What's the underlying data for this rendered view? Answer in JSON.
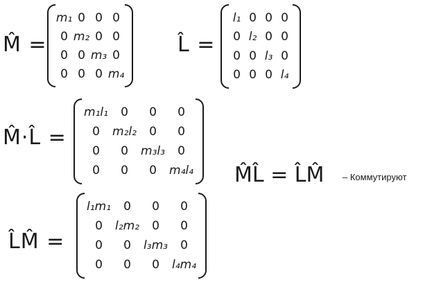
{
  "equations": {
    "M": {
      "lhs": "M̂ =",
      "matrix": [
        [
          "m₁",
          "0",
          "0",
          "0"
        ],
        [
          "0",
          "m₂",
          "0",
          "0"
        ],
        [
          "0",
          "0",
          "m₃",
          "0"
        ],
        [
          "0",
          "0",
          "0",
          "m₄"
        ]
      ]
    },
    "L": {
      "lhs": "L̂ =",
      "matrix": [
        [
          "l₁",
          "0",
          "0",
          "0"
        ],
        [
          "0",
          "l₂",
          "0",
          "0"
        ],
        [
          "0",
          "0",
          "l₃",
          "0"
        ],
        [
          "0",
          "0",
          "0",
          "l₄"
        ]
      ]
    },
    "ML": {
      "lhs": "M̂·L̂ =",
      "matrix": [
        [
          "m₁l₁",
          "0",
          "0",
          "0"
        ],
        [
          "0",
          "m₂l₂",
          "0",
          "0"
        ],
        [
          "0",
          "0",
          "m₃l₃",
          "0"
        ],
        [
          "0",
          "0",
          "0",
          "m₄l₄"
        ]
      ]
    },
    "LM": {
      "lhs": "L̂M̂ =",
      "matrix": [
        [
          "l₁m₁",
          "0",
          "0",
          "0"
        ],
        [
          "0",
          "l₂m₂",
          "0",
          "0"
        ],
        [
          "0",
          "0",
          "l₃m₃",
          "0"
        ],
        [
          "0",
          "0",
          "0",
          "l₄m₄"
        ]
      ]
    }
  },
  "result": {
    "expression": "M̂L̂ = L̂M̂",
    "dash": "–",
    "note": "Коммутируют"
  }
}
